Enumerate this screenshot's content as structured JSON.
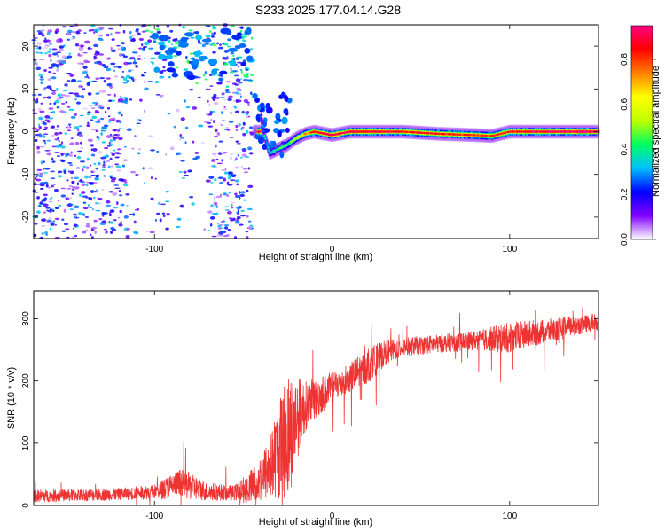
{
  "title": "S233.2025.177.04.14.G28",
  "chart_data": [
    {
      "type": "heatmap",
      "xlabel": "Height of straight line (km)",
      "ylabel": "Frequency (Hz)",
      "xlim": [
        -168,
        150
      ],
      "ylim": [
        -25,
        25
      ],
      "xticks": [
        -100,
        0,
        100
      ],
      "yticks": [
        -20,
        -10,
        0,
        10,
        20
      ],
      "colorbar": {
        "label": "Normalized spectral amplitude",
        "range": [
          0,
          0.95
        ],
        "ticks": [
          "0.0",
          "0.2",
          "0.4",
          "0.6",
          "0.8"
        ],
        "colors": [
          "#ffffff",
          "#8000ff",
          "#0000ff",
          "#00c0ff",
          "#00ff60",
          "#c0ff00",
          "#ffff00",
          "#ff8000",
          "#ff0000",
          "#ff0080"
        ]
      },
      "noise_region": {
        "x": [
          -168,
          -45
        ],
        "freq_range": [
          -25,
          25
        ],
        "amplitude": [
          0.02,
          0.35
        ]
      },
      "main_track": [
        {
          "x": -40,
          "freq": 3.5,
          "amp": 0.3
        },
        {
          "x": -38,
          "freq": -1,
          "amp": 0.35
        },
        {
          "x": -35,
          "freq": -5,
          "amp": 0.35
        },
        {
          "x": -30,
          "freq": -4,
          "amp": 0.4
        },
        {
          "x": -25,
          "freq": -3,
          "amp": 0.45
        },
        {
          "x": -20,
          "freq": -1.5,
          "amp": 0.55
        },
        {
          "x": -15,
          "freq": -0.5,
          "amp": 0.7
        },
        {
          "x": -10,
          "freq": 0,
          "amp": 0.85
        },
        {
          "x": 0,
          "freq": -0.8,
          "amp": 0.9
        },
        {
          "x": 10,
          "freq": 0,
          "amp": 0.9
        },
        {
          "x": 20,
          "freq": 0,
          "amp": 0.9
        },
        {
          "x": 40,
          "freq": 0,
          "amp": 0.85
        },
        {
          "x": 60,
          "freq": -0.5,
          "amp": 0.85
        },
        {
          "x": 80,
          "freq": -0.8,
          "amp": 0.8
        },
        {
          "x": 90,
          "freq": -1,
          "amp": 0.8
        },
        {
          "x": 100,
          "freq": 0,
          "amp": 0.85
        },
        {
          "x": 120,
          "freq": 0,
          "amp": 0.9
        },
        {
          "x": 150,
          "freq": 0,
          "amp": 0.95
        }
      ]
    },
    {
      "type": "line",
      "xlabel": "Height of straight line (km)",
      "ylabel": "SNR (10 * v/v)",
      "xlim": [
        -168,
        150
      ],
      "ylim": [
        0,
        345
      ],
      "xticks": [
        -100,
        0,
        100
      ],
      "yticks": [
        0,
        100,
        200,
        300
      ],
      "color": "#ee3333",
      "envelope": {
        "x": [
          -168,
          -120,
          -100,
          -85,
          -70,
          -55,
          -45,
          -35,
          -30,
          -25,
          -20,
          -15,
          -10,
          -5,
          0,
          10,
          20,
          30,
          40,
          60,
          80,
          100,
          120,
          140,
          150
        ],
        "mean": [
          15,
          18,
          22,
          35,
          22,
          20,
          30,
          60,
          90,
          110,
          140,
          160,
          170,
          180,
          190,
          205,
          225,
          245,
          255,
          260,
          265,
          270,
          280,
          290,
          295
        ],
        "noise": [
          10,
          10,
          12,
          25,
          15,
          12,
          30,
          50,
          80,
          110,
          70,
          40,
          35,
          30,
          25,
          25,
          30,
          20,
          15,
          15,
          15,
          25,
          20,
          15,
          15
        ]
      }
    }
  ]
}
